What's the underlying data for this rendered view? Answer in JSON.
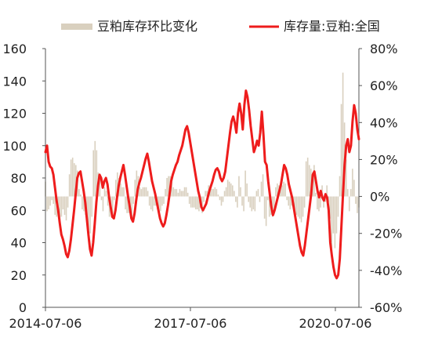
{
  "chart_data": {
    "type": "line",
    "legend_position": "top",
    "legend": [
      {
        "label": "豆粕库存环比变化",
        "kind": "bar",
        "axis": "right",
        "color": "#d9d0bf"
      },
      {
        "label": "库存量:豆粕:全国",
        "kind": "line",
        "axis": "left",
        "color": "#ee1c1c"
      }
    ],
    "x_ticks": [
      "2014-07-06",
      "2017-07-06",
      "2020-07-06"
    ],
    "x_range": [
      "2014-07-06",
      "2020-12-31"
    ],
    "y_left": {
      "range": [
        0,
        160
      ],
      "ticks": [
        "0",
        "20",
        "40",
        "60",
        "80",
        "100",
        "120",
        "140",
        "160"
      ]
    },
    "y_right": {
      "range": [
        -60,
        80
      ],
      "ticks": [
        "-60%",
        "-40%",
        "-20%",
        "0%",
        "20%",
        "40%",
        "60%",
        "80%"
      ]
    },
    "grid": false,
    "inventory_line": {
      "name": "库存量:豆粕:全国",
      "start": "2014-07-06",
      "end": "2020-12-31",
      "values": [
        96,
        100,
        90,
        87,
        86,
        82,
        74,
        66,
        60,
        52,
        45,
        42,
        38,
        33,
        31,
        35,
        42,
        51,
        60,
        70,
        80,
        83,
        84,
        78,
        72,
        65,
        55,
        45,
        36,
        32,
        40,
        52,
        65,
        75,
        82,
        80,
        74,
        78,
        80,
        76,
        68,
        62,
        56,
        55,
        60,
        68,
        75,
        80,
        84,
        88,
        82,
        75,
        68,
        62,
        55,
        53,
        58,
        66,
        73,
        77,
        80,
        84,
        88,
        92,
        95,
        90,
        84,
        78,
        74,
        70,
        65,
        60,
        55,
        52,
        50,
        52,
        57,
        63,
        70,
        78,
        82,
        85,
        88,
        90,
        94,
        97,
        100,
        105,
        110,
        112,
        108,
        102,
        96,
        90,
        84,
        78,
        72,
        68,
        62,
        60,
        62,
        64,
        68,
        72,
        75,
        78,
        82,
        85,
        86,
        84,
        80,
        78,
        80,
        84,
        92,
        100,
        108,
        115,
        118,
        114,
        108,
        120,
        126,
        120,
        110,
        125,
        134,
        130,
        122,
        112,
        104,
        96,
        99,
        103,
        100,
        108,
        121,
        107,
        90,
        88,
        78,
        70,
        62,
        57,
        60,
        64,
        68,
        72,
        76,
        82,
        88,
        86,
        82,
        76,
        72,
        68,
        62,
        56,
        50,
        44,
        38,
        34,
        32,
        38,
        46,
        54,
        62,
        70,
        82,
        84,
        78,
        72,
        68,
        72,
        68,
        66,
        70,
        68,
        60,
        40,
        32,
        25,
        20,
        18,
        20,
        30,
        50,
        70,
        88,
        100,
        104,
        96,
        100,
        115,
        125,
        120,
        110,
        104
      ]
    },
    "change_bars": {
      "name": "豆粕库存环比变化",
      "start": "2014-07-06",
      "end": "2020-12-31",
      "values": [
        8,
        -8,
        -7,
        -5,
        -2,
        -4,
        -10,
        -11,
        -9,
        -13,
        -11,
        -7,
        -10,
        -13,
        -6,
        12,
        20,
        21,
        18,
        17,
        14,
        4,
        1,
        -7,
        -8,
        -10,
        -15,
        -18,
        -20,
        -11,
        25,
        30,
        25,
        13,
        9,
        -2,
        -8,
        5,
        3,
        -5,
        -11,
        -9,
        -10,
        -2,
        9,
        13,
        10,
        7,
        5,
        5,
        -7,
        -9,
        -9,
        -9,
        -11,
        -4,
        9,
        14,
        11,
        5,
        4,
        5,
        5,
        5,
        3,
        -5,
        -7,
        -8,
        -5,
        -5,
        -7,
        -8,
        -8,
        -5,
        -4,
        4,
        10,
        11,
        11,
        11,
        5,
        4,
        4,
        2,
        4,
        3,
        3,
        5,
        5,
        2,
        -4,
        -6,
        -6,
        -6,
        -7,
        -7,
        -8,
        -6,
        -9,
        -3,
        3,
        3,
        6,
        6,
        4,
        4,
        5,
        4,
        1,
        -2,
        -5,
        -3,
        3,
        5,
        9,
        8,
        7,
        6,
        3,
        -3,
        -6,
        11,
        5,
        -5,
        -8,
        14,
        7,
        -3,
        -6,
        -8,
        -7,
        -8,
        3,
        4,
        -3,
        8,
        12,
        -12,
        -16,
        -2,
        -11,
        -10,
        -11,
        -8,
        5,
        7,
        6,
        6,
        6,
        8,
        7,
        -2,
        -5,
        -7,
        -5,
        -6,
        -9,
        -10,
        -11,
        -12,
        -14,
        -11,
        -6,
        19,
        21,
        17,
        15,
        13,
        17,
        2,
        -7,
        -8,
        -6,
        6,
        -6,
        -3,
        6,
        -3,
        -12,
        -33,
        -20,
        -28,
        -20,
        -11,
        11,
        50,
        67,
        40,
        20,
        4,
        -8,
        4,
        15,
        9,
        -4,
        -9,
        -6
      ]
    }
  }
}
